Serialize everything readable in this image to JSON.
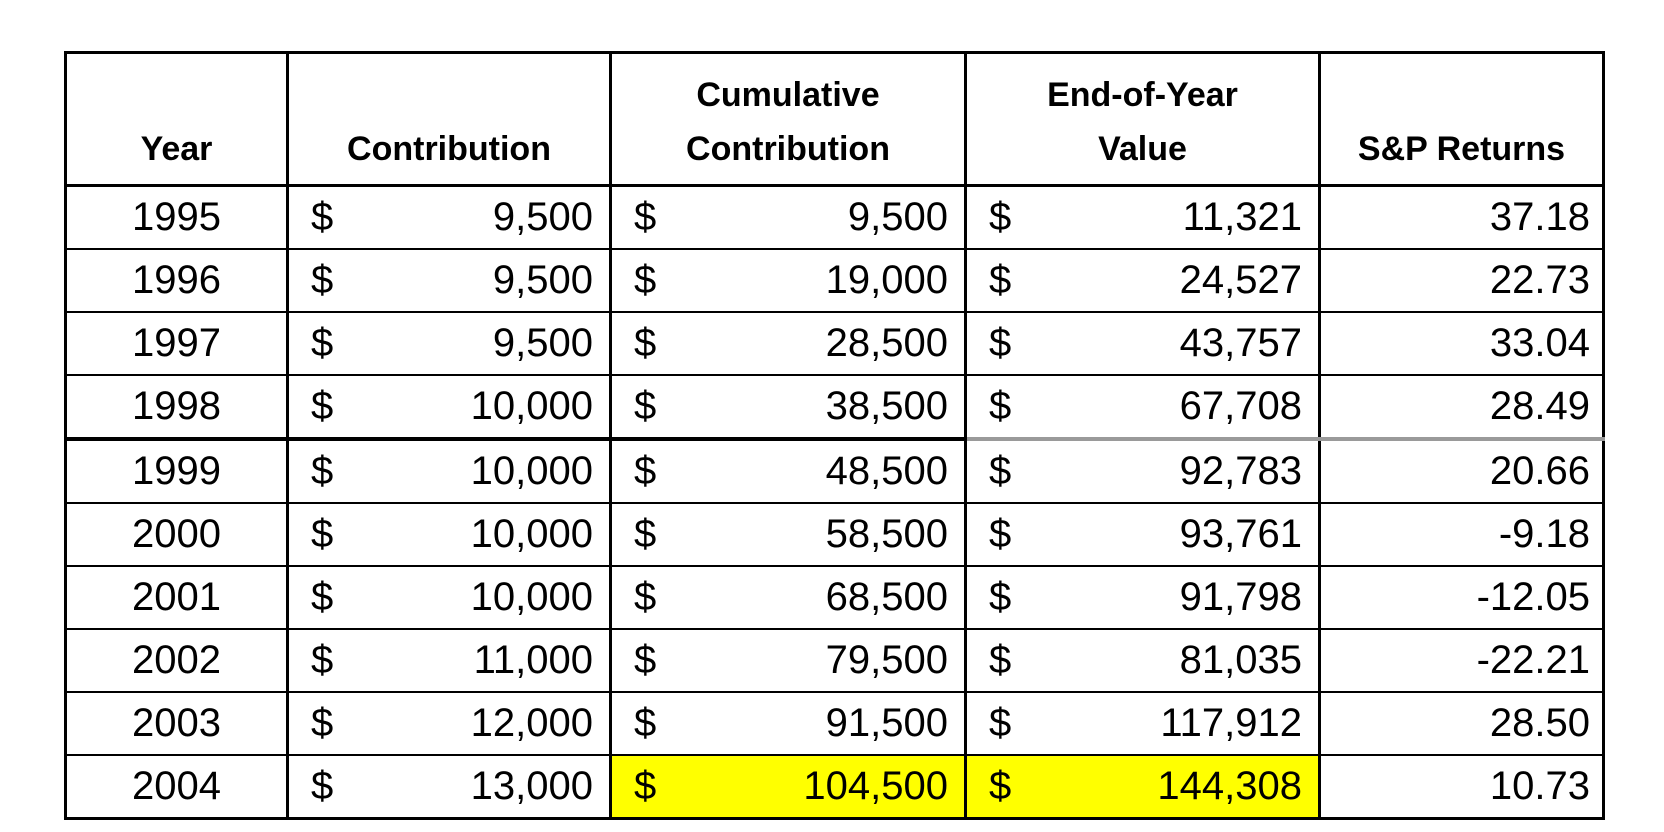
{
  "table": {
    "headers": [
      {
        "id": "year",
        "lines": [
          "Year"
        ]
      },
      {
        "id": "contribution",
        "lines": [
          "Contribution"
        ]
      },
      {
        "id": "cumulative_contribution",
        "lines": [
          "Cumulative",
          "Contribution"
        ]
      },
      {
        "id": "end_of_year_value",
        "lines": [
          "End-of-Year",
          "Value"
        ]
      },
      {
        "id": "sp_returns",
        "lines": [
          "S&P Returns"
        ]
      }
    ],
    "currency_symbol": "$",
    "highlight_color": "#FFFF00",
    "thick_border_after_year": "1998",
    "rows": [
      {
        "year": "1995",
        "contribution": "9,500",
        "cumulative_contribution": "9,500",
        "end_of_year_value": "11,321",
        "sp_return": "37.18",
        "highlight_cells": []
      },
      {
        "year": "1996",
        "contribution": "9,500",
        "cumulative_contribution": "19,000",
        "end_of_year_value": "24,527",
        "sp_return": "22.73",
        "highlight_cells": []
      },
      {
        "year": "1997",
        "contribution": "9,500",
        "cumulative_contribution": "28,500",
        "end_of_year_value": "43,757",
        "sp_return": "33.04",
        "highlight_cells": []
      },
      {
        "year": "1998",
        "contribution": "10,000",
        "cumulative_contribution": "38,500",
        "end_of_year_value": "67,708",
        "sp_return": "28.49",
        "highlight_cells": []
      },
      {
        "year": "1999",
        "contribution": "10,000",
        "cumulative_contribution": "48,500",
        "end_of_year_value": "92,783",
        "sp_return": "20.66",
        "highlight_cells": []
      },
      {
        "year": "2000",
        "contribution": "10,000",
        "cumulative_contribution": "58,500",
        "end_of_year_value": "93,761",
        "sp_return": "-9.18",
        "highlight_cells": []
      },
      {
        "year": "2001",
        "contribution": "10,000",
        "cumulative_contribution": "68,500",
        "end_of_year_value": "91,798",
        "sp_return": "-12.05",
        "highlight_cells": []
      },
      {
        "year": "2002",
        "contribution": "11,000",
        "cumulative_contribution": "79,500",
        "end_of_year_value": "81,035",
        "sp_return": "-22.21",
        "highlight_cells": []
      },
      {
        "year": "2003",
        "contribution": "12,000",
        "cumulative_contribution": "91,500",
        "end_of_year_value": "117,912",
        "sp_return": "28.50",
        "highlight_cells": []
      },
      {
        "year": "2004",
        "contribution": "13,000",
        "cumulative_contribution": "104,500",
        "end_of_year_value": "144,308",
        "sp_return": "10.73",
        "highlight_cells": [
          "cumulative_contribution",
          "end_of_year_value"
        ]
      }
    ]
  },
  "chart_data": {
    "type": "table",
    "title": "",
    "columns": [
      "Year",
      "Contribution",
      "Cumulative Contribution",
      "End-of-Year Value",
      "S&P Returns"
    ],
    "rows": [
      [
        1995,
        9500,
        9500,
        11321,
        37.18
      ],
      [
        1996,
        9500,
        19000,
        24527,
        22.73
      ],
      [
        1997,
        9500,
        28500,
        43757,
        33.04
      ],
      [
        1998,
        10000,
        38500,
        67708,
        28.49
      ],
      [
        1999,
        10000,
        48500,
        92783,
        20.66
      ],
      [
        2000,
        10000,
        58500,
        93761,
        -9.18
      ],
      [
        2001,
        10000,
        68500,
        91798,
        -12.05
      ],
      [
        2002,
        11000,
        79500,
        81035,
        -22.21
      ],
      [
        2003,
        12000,
        91500,
        117912,
        28.5
      ],
      [
        2004,
        13000,
        104500,
        144308,
        10.73
      ]
    ],
    "currency_columns": [
      "Contribution",
      "Cumulative Contribution",
      "End-of-Year Value"
    ],
    "highlighted_cells": [
      {
        "year": 2004,
        "column": "Cumulative Contribution"
      },
      {
        "year": 2004,
        "column": "End-of-Year Value"
      }
    ],
    "highlight_color": "#FFFF00"
  }
}
